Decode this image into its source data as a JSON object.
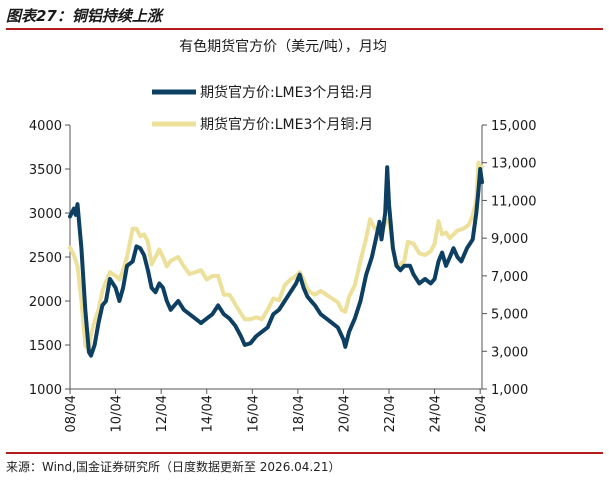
{
  "figure": {
    "title": "图表27：铜铝持续上涨",
    "source": "来源：Wind,国金证券研究所（日度数据更新至 2026.04.21）"
  },
  "chart_data": {
    "type": "line",
    "title": "有色期货官方价（美元/吨），月均",
    "legend_position": "top-center",
    "x_ticks": [
      "08/04",
      "10/04",
      "12/04",
      "14/04",
      "16/04",
      "18/04",
      "20/04",
      "22/04",
      "24/04",
      "26/04"
    ],
    "x_range": [
      2008.25,
      2026.33
    ],
    "y_left": {
      "range": [
        1000,
        4000
      ],
      "ticks": [
        "1000",
        "1500",
        "2000",
        "2500",
        "3000",
        "3500",
        "4000"
      ]
    },
    "y_right": {
      "range": [
        1000,
        15000
      ],
      "ticks": [
        "1,000",
        "3,000",
        "5,000",
        "7,000",
        "9,000",
        "11,000",
        "13,000",
        "15,000"
      ]
    },
    "colors": {
      "aluminum": "#0d3f63",
      "copper": "#ede09a"
    },
    "series": [
      {
        "name": "期货官方价:LME3个月铝:月",
        "axis": "left",
        "color": "#0d3f63",
        "x": [
          2008.25,
          2008.42,
          2008.5,
          2008.58,
          2008.75,
          2008.92,
          2009.08,
          2009.17,
          2009.33,
          2009.5,
          2009.67,
          2009.83,
          2010.0,
          2010.25,
          2010.42,
          2010.58,
          2010.75,
          2011.0,
          2011.17,
          2011.33,
          2011.5,
          2011.67,
          2011.83,
          2012.0,
          2012.17,
          2012.33,
          2012.5,
          2012.67,
          2012.83,
          2013.0,
          2013.25,
          2013.5,
          2013.75,
          2014.0,
          2014.25,
          2014.5,
          2014.75,
          2015.0,
          2015.25,
          2015.5,
          2015.75,
          2015.92,
          2016.17,
          2016.42,
          2016.67,
          2016.92,
          2017.17,
          2017.42,
          2017.67,
          2017.92,
          2018.17,
          2018.33,
          2018.5,
          2018.67,
          2018.83,
          2019.0,
          2019.25,
          2019.5,
          2019.75,
          2020.0,
          2020.25,
          2020.33,
          2020.5,
          2020.75,
          2021.0,
          2021.25,
          2021.5,
          2021.67,
          2021.83,
          2021.92,
          2022.08,
          2022.17,
          2022.25,
          2022.42,
          2022.58,
          2022.75,
          2022.92,
          2023.17,
          2023.33,
          2023.58,
          2023.83,
          2024.08,
          2024.25,
          2024.42,
          2024.58,
          2024.75,
          2024.92,
          2025.08,
          2025.25,
          2025.42,
          2025.67,
          2025.92,
          2026.08,
          2026.17,
          2026.25,
          2026.33
        ],
        "y": [
          2960,
          3050,
          2980,
          3100,
          2600,
          1900,
          1420,
          1380,
          1500,
          1750,
          1950,
          2000,
          2250,
          2150,
          2000,
          2150,
          2400,
          2450,
          2620,
          2600,
          2520,
          2350,
          2150,
          2100,
          2200,
          2150,
          2000,
          1900,
          1950,
          2000,
          1900,
          1850,
          1800,
          1750,
          1800,
          1850,
          1950,
          1850,
          1800,
          1720,
          1600,
          1500,
          1520,
          1600,
          1650,
          1700,
          1850,
          1900,
          2000,
          2100,
          2200,
          2300,
          2150,
          2050,
          2000,
          1950,
          1850,
          1800,
          1750,
          1700,
          1560,
          1480,
          1650,
          1800,
          2000,
          2300,
          2500,
          2700,
          2900,
          2700,
          3000,
          3520,
          3100,
          2600,
          2400,
          2350,
          2400,
          2400,
          2300,
          2200,
          2250,
          2200,
          2250,
          2450,
          2550,
          2400,
          2500,
          2600,
          2500,
          2450,
          2600,
          2700,
          3000,
          3250,
          3500,
          3350
        ]
      },
      {
        "name": "期货官方价:LME3个月铜:月",
        "axis": "right",
        "color": "#ede09a",
        "x": [
          2008.25,
          2008.42,
          2008.58,
          2008.75,
          2008.92,
          2009.08,
          2009.17,
          2009.33,
          2009.5,
          2009.67,
          2009.83,
          2010.0,
          2010.25,
          2010.42,
          2010.58,
          2010.75,
          2011.0,
          2011.17,
          2011.33,
          2011.5,
          2011.67,
          2011.83,
          2012.0,
          2012.17,
          2012.33,
          2012.5,
          2012.67,
          2012.83,
          2013.0,
          2013.25,
          2013.5,
          2013.75,
          2014.0,
          2014.25,
          2014.5,
          2014.75,
          2015.0,
          2015.25,
          2015.5,
          2015.75,
          2015.92,
          2016.17,
          2016.42,
          2016.67,
          2016.92,
          2017.17,
          2017.42,
          2017.67,
          2017.92,
          2018.17,
          2018.33,
          2018.5,
          2018.67,
          2018.83,
          2019.0,
          2019.25,
          2019.5,
          2019.75,
          2020.0,
          2020.17,
          2020.33,
          2020.5,
          2020.75,
          2021.0,
          2021.25,
          2021.42,
          2021.58,
          2021.75,
          2021.92,
          2022.08,
          2022.25,
          2022.42,
          2022.58,
          2022.75,
          2022.92,
          2023.08,
          2023.33,
          2023.58,
          2023.83,
          2024.08,
          2024.25,
          2024.42,
          2024.58,
          2024.75,
          2024.92,
          2025.08,
          2025.25,
          2025.5,
          2025.75,
          2025.92,
          2026.08,
          2026.17,
          2026.25,
          2026.33
        ],
        "y": [
          8500,
          8100,
          7500,
          5700,
          3300,
          3100,
          3900,
          4600,
          5200,
          6200,
          6700,
          7200,
          7000,
          6800,
          7300,
          8000,
          9500,
          9500,
          9100,
          9200,
          8800,
          7600,
          8000,
          8400,
          8000,
          7500,
          7800,
          7900,
          8000,
          7500,
          7100,
          7200,
          7300,
          6800,
          7000,
          7000,
          6000,
          6000,
          5500,
          5000,
          4700,
          4700,
          4800,
          4700,
          5200,
          5800,
          5700,
          6500,
          6800,
          7000,
          7200,
          6800,
          6300,
          6100,
          6000,
          6200,
          6000,
          5800,
          5600,
          5200,
          5100,
          5900,
          6500,
          7800,
          9000,
          10000,
          9600,
          9400,
          9300,
          9800,
          10000,
          8500,
          7500,
          7600,
          7800,
          8800,
          8700,
          8200,
          8100,
          8300,
          8700,
          9900,
          9200,
          9300,
          9000,
          9200,
          9400,
          9500,
          9700,
          10200,
          11000,
          13000,
          12600,
          12800
        ]
      }
    ]
  }
}
